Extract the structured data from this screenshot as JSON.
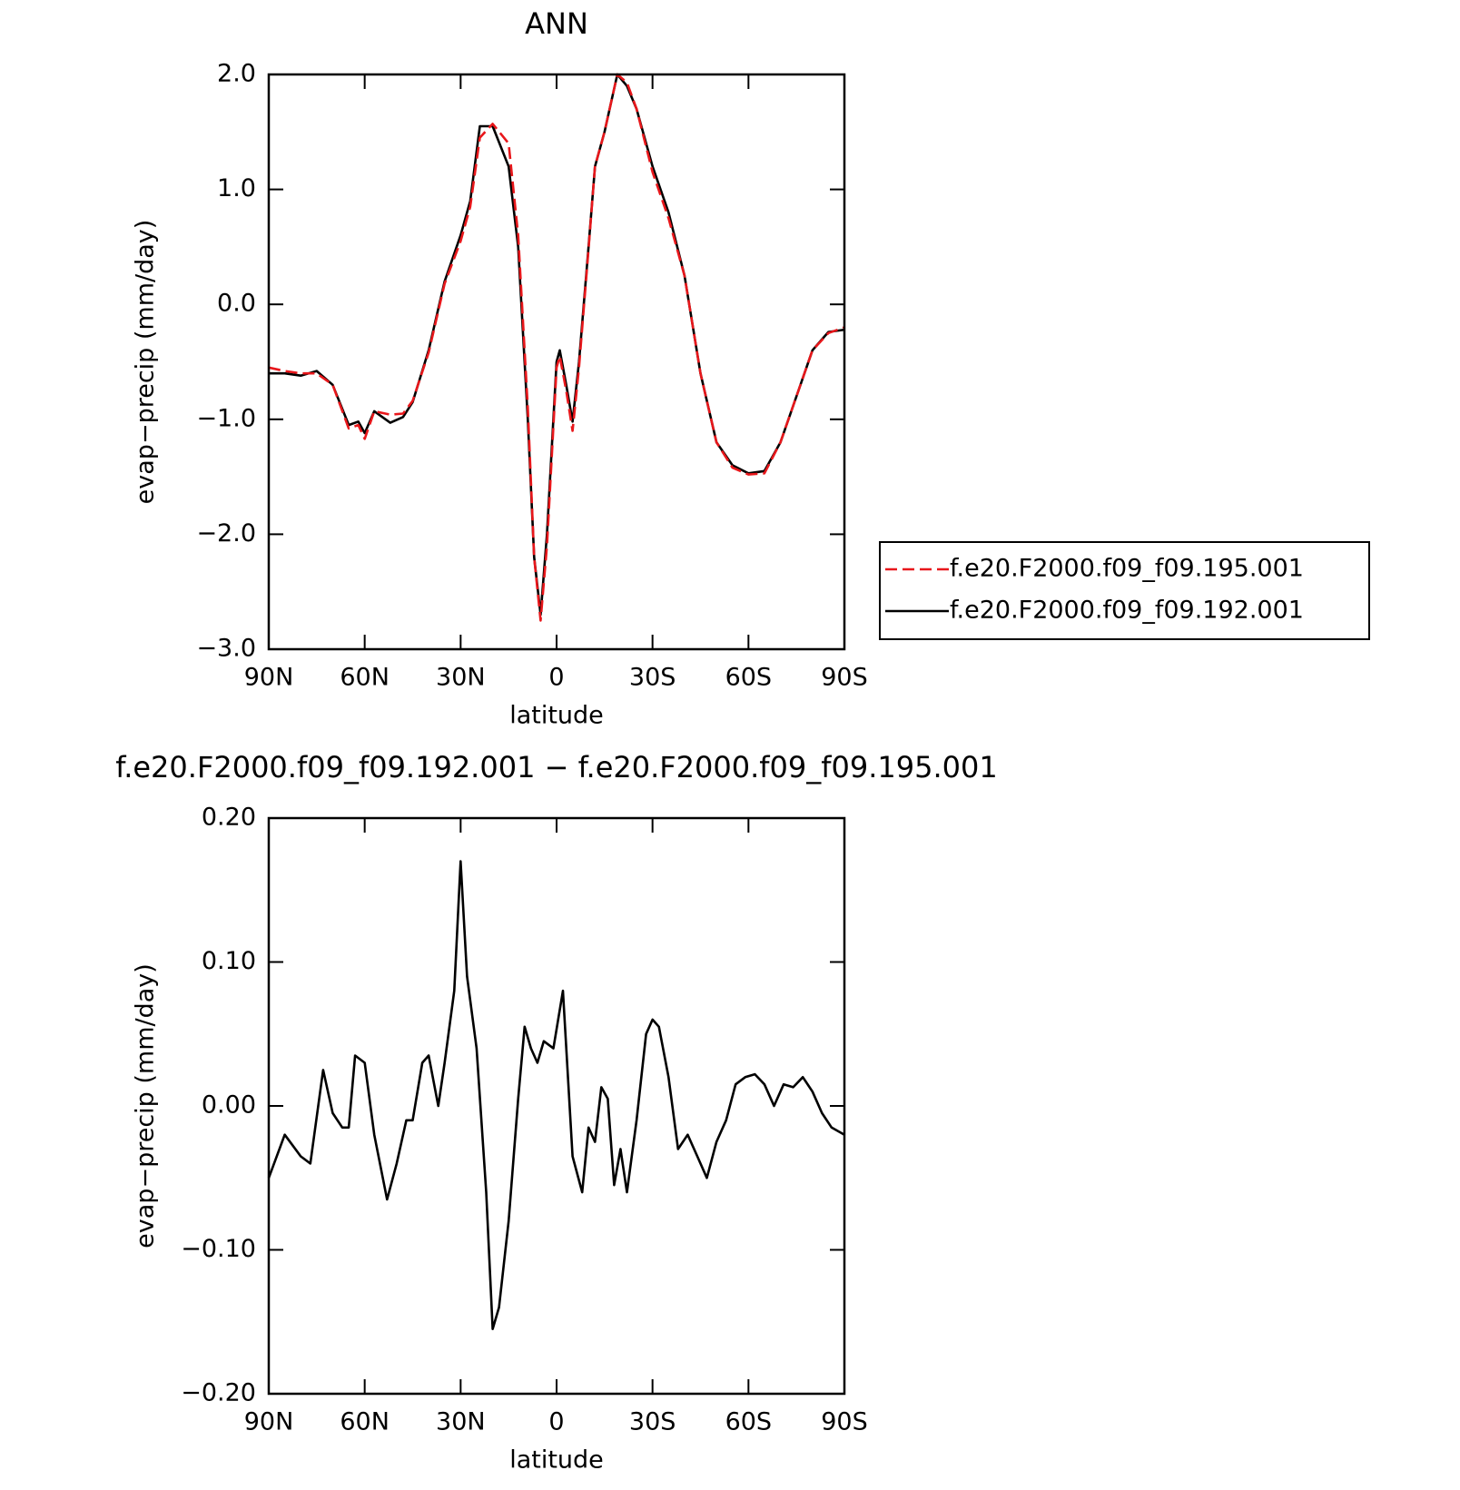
{
  "chart_data": [
    {
      "type": "line",
      "title": "ANN",
      "xlabel": "latitude",
      "ylabel": "evap−precip (mm/day)",
      "x": [
        90,
        85,
        80,
        75,
        70,
        65,
        62,
        60,
        57,
        52,
        48,
        45,
        40,
        35,
        30,
        27,
        24,
        20,
        15,
        12,
        9,
        7,
        5,
        3,
        0,
        -1,
        -3,
        -5,
        -7,
        -10,
        -12,
        -15,
        -19,
        -22,
        -25,
        -30,
        -35,
        -40,
        -45,
        -50,
        -55,
        -60,
        -65,
        -70,
        -75,
        -80,
        -85,
        -90
      ],
      "series": [
        {
          "name": "f.e20.F2000.f09_f09.195.001",
          "color": "#e8171b",
          "dash": true,
          "values": [
            -0.55,
            -0.58,
            -0.6,
            -0.6,
            -0.7,
            -1.08,
            -1.05,
            -1.17,
            -0.93,
            -0.96,
            -0.95,
            -0.84,
            -0.42,
            0.18,
            0.55,
            0.85,
            1.45,
            1.57,
            1.4,
            0.6,
            -0.9,
            -2.2,
            -2.75,
            -2.1,
            -0.55,
            -0.45,
            -0.75,
            -1.1,
            -0.55,
            0.48,
            1.2,
            1.5,
            2.0,
            1.93,
            1.7,
            1.15,
            0.75,
            0.25,
            -0.6,
            -1.2,
            -1.42,
            -1.48,
            -1.47,
            -1.2,
            -0.8,
            -0.4,
            -0.25,
            -0.2
          ]
        },
        {
          "name": "f.e20.F2000.f09_f09.192.001",
          "color": "#000000",
          "dash": false,
          "values": [
            -0.6,
            -0.6,
            -0.62,
            -0.58,
            -0.7,
            -1.05,
            -1.02,
            -1.12,
            -0.93,
            -1.03,
            -0.98,
            -0.85,
            -0.4,
            0.2,
            0.6,
            0.9,
            1.55,
            1.55,
            1.2,
            0.5,
            -1.0,
            -2.2,
            -2.7,
            -2.0,
            -0.5,
            -0.4,
            -0.7,
            -1.02,
            -0.5,
            0.5,
            1.2,
            1.5,
            2.0,
            1.9,
            1.7,
            1.2,
            0.8,
            0.25,
            -0.6,
            -1.2,
            -1.4,
            -1.47,
            -1.45,
            -1.2,
            -0.8,
            -0.4,
            -0.24,
            -0.22
          ]
        }
      ],
      "xlim": [
        90,
        -90
      ],
      "xticks": [
        {
          "value": 90,
          "label": "90N"
        },
        {
          "value": 60,
          "label": "60N"
        },
        {
          "value": 30,
          "label": "30N"
        },
        0,
        {
          "value": -30,
          "label": "30S"
        },
        {
          "value": -60,
          "label": "60S"
        },
        {
          "value": -90,
          "label": "90S"
        }
      ],
      "ylim": [
        -3.0,
        2.0
      ],
      "yticks": [
        {
          "value": -3,
          "label": "−3.0"
        },
        {
          "value": -2,
          "label": "−2.0"
        },
        {
          "value": -1,
          "label": "−1.0"
        },
        {
          "value": 0,
          "label": "0.0"
        },
        {
          "value": 1,
          "label": "1.0"
        },
        {
          "value": 2,
          "label": "2.0"
        }
      ],
      "legend": "right"
    },
    {
      "type": "line",
      "title": "f.e20.F2000.f09_f09.192.001 − f.e20.F2000.f09_f09.195.001",
      "xlabel": "latitude",
      "ylabel": "evap−precip (mm/day)",
      "x": [
        90,
        85,
        80,
        77,
        73,
        70,
        67,
        65,
        63,
        60,
        57,
        53,
        50,
        47,
        45,
        42,
        40,
        37,
        35,
        32,
        30,
        28,
        25,
        22,
        20,
        18,
        15,
        12,
        10,
        8,
        6,
        4,
        1,
        -2,
        -5,
        -8,
        -10,
        -12,
        -14,
        -16,
        -18,
        -20,
        -22,
        -25,
        -28,
        -30,
        -32,
        -35,
        -38,
        -41,
        -44,
        -47,
        -50,
        -53,
        -56,
        -59,
        -62,
        -65,
        -68,
        -71,
        -74,
        -77,
        -80,
        -83,
        -86,
        -90
      ],
      "series": [
        {
          "color": "#000000",
          "dash": false,
          "values": [
            -0.05,
            -0.02,
            -0.035,
            -0.04,
            0.025,
            -0.005,
            -0.015,
            -0.015,
            0.035,
            0.03,
            -0.02,
            -0.065,
            -0.04,
            -0.01,
            -0.01,
            0.03,
            0.035,
            0.0,
            0.03,
            0.08,
            0.17,
            0.09,
            0.04,
            -0.06,
            -0.155,
            -0.14,
            -0.08,
            0.005,
            0.055,
            0.04,
            0.03,
            0.045,
            0.04,
            0.08,
            -0.035,
            -0.06,
            -0.015,
            -0.025,
            0.013,
            0.005,
            -0.055,
            -0.03,
            -0.06,
            -0.01,
            0.05,
            0.06,
            0.055,
            0.02,
            -0.03,
            -0.02,
            -0.035,
            -0.05,
            -0.025,
            -0.01,
            0.015,
            0.02,
            0.022,
            0.015,
            0.0,
            0.015,
            0.013,
            0.02,
            0.01,
            -0.005,
            -0.015,
            -0.02
          ]
        }
      ],
      "xlim": [
        90,
        -90
      ],
      "xticks": [
        {
          "value": 90,
          "label": "90N"
        },
        {
          "value": 60,
          "label": "60N"
        },
        {
          "value": 30,
          "label": "30N"
        },
        0,
        {
          "value": -30,
          "label": "30S"
        },
        {
          "value": -60,
          "label": "60S"
        },
        {
          "value": -90,
          "label": "90S"
        }
      ],
      "ylim": [
        -0.2,
        0.2
      ],
      "yticks": [
        {
          "value": -0.2,
          "label": "−0.20"
        },
        {
          "value": -0.1,
          "label": "−0.10"
        },
        {
          "value": 0,
          "label": "0.00"
        },
        {
          "value": 0.1,
          "label": "0.10"
        },
        {
          "value": 0.2,
          "label": "0.20"
        }
      ]
    }
  ]
}
